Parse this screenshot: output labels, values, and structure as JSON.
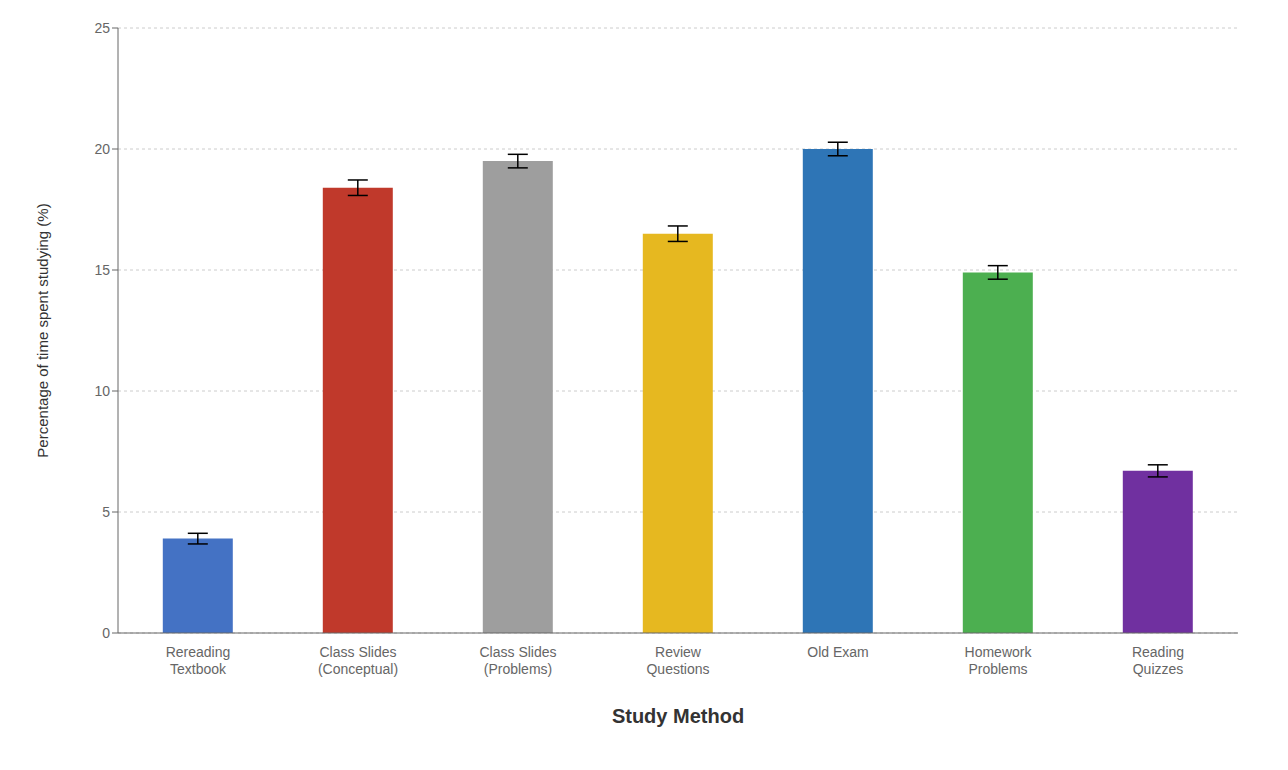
{
  "chart_data": {
    "type": "bar",
    "categories": [
      "Rereading\nTextbook",
      "Class Slides\n(Conceptual)",
      "Class Slides\n(Problems)",
      "Review\nQuestions",
      "Old Exam",
      "Homework\nProblems",
      "Reading\nQuizzes"
    ],
    "values": [
      3.9,
      18.4,
      19.5,
      16.5,
      20.0,
      14.9,
      6.7
    ],
    "errors": [
      0.22,
      0.32,
      0.28,
      0.32,
      0.28,
      0.28,
      0.25
    ],
    "colors": [
      "#4472C4",
      "#C0392B",
      "#9E9E9E",
      "#E6B820",
      "#2E75B6",
      "#4CAF50",
      "#7030A0"
    ],
    "xlabel": "Study Method",
    "ylabel": "Percentage of time spent studying (%)",
    "ylim": [
      0,
      25
    ],
    "yticks": [
      0,
      5,
      10,
      15,
      20,
      25
    ],
    "grid": true
  }
}
